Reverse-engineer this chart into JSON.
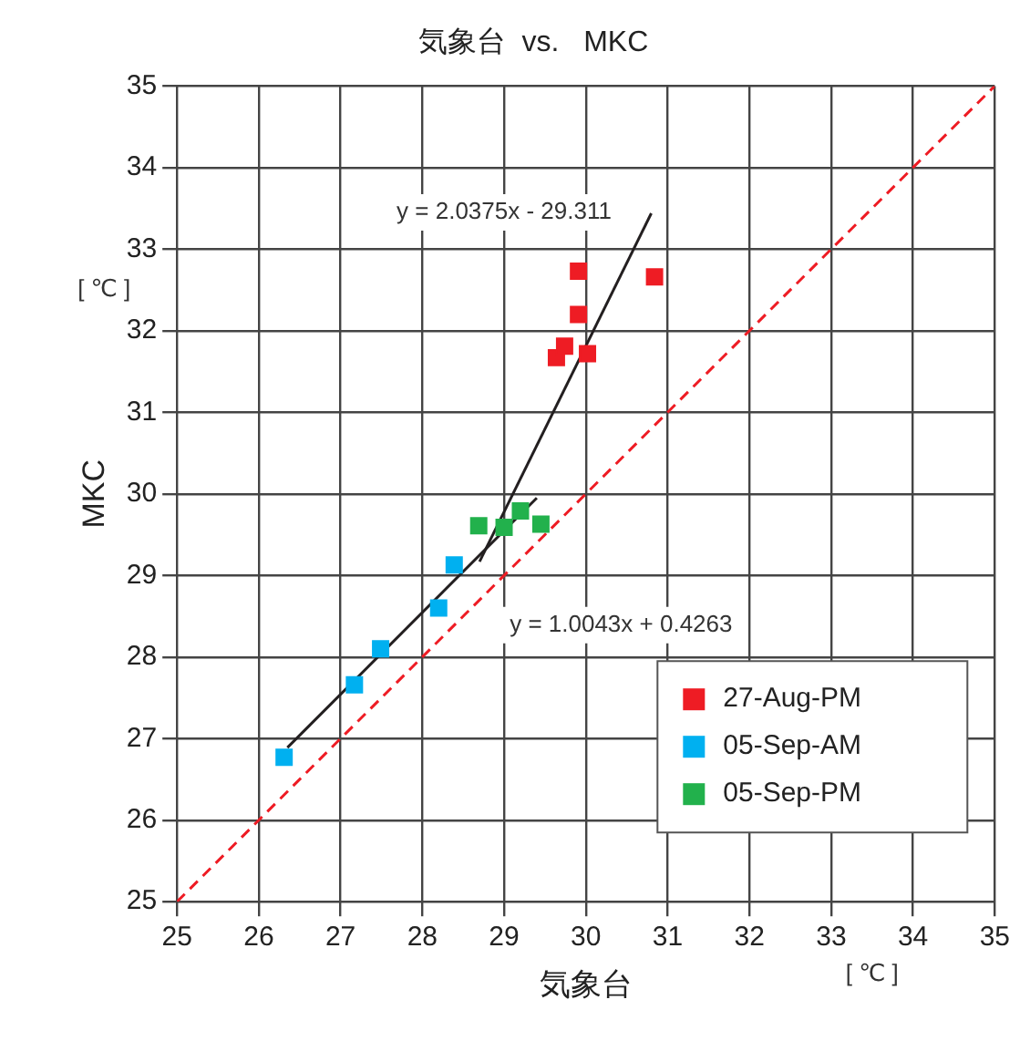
{
  "chart_data": {
    "type": "scatter",
    "title": "気象台  vs.   MKC",
    "xlabel": "気象台",
    "ylabel": "MKC",
    "xlim": [
      25,
      35
    ],
    "xticks": [
      25,
      26,
      27,
      28,
      29,
      30,
      31,
      32,
      33,
      34,
      35
    ],
    "ylim": [
      25,
      35
    ],
    "yticks": [
      25,
      26,
      27,
      28,
      29,
      30,
      31,
      32,
      33,
      34,
      35
    ],
    "grid": true,
    "legend": "bottom right",
    "series": [
      {
        "name": "27-Aug-PM",
        "color": "#ee1c24",
        "marker": "square",
        "x": [
          29.91,
          30.84,
          29.91,
          29.64,
          29.74,
          30.02
        ],
        "values": [
          32.73,
          32.66,
          32.2,
          31.67,
          31.81,
          31.72
        ]
      },
      {
        "name": "05-Sep-AM",
        "color": "#00b0f0",
        "marker": "square",
        "x": [
          26.31,
          27.17,
          27.49,
          28.2,
          28.39
        ],
        "values": [
          26.77,
          27.66,
          28.1,
          28.6,
          29.13
        ]
      },
      {
        "name": "05-Sep-PM",
        "color": "#22b14c",
        "marker": "square",
        "x": [
          28.69,
          29.0,
          29.2,
          29.36,
          29.45
        ],
        "values": [
          29.61,
          29.59,
          29.79,
          null,
          29.63
        ]
      },
      {
        "type": "line",
        "color": "#231f20",
        "marker": "none",
        "line_style": "solid",
        "x": [
          28.7,
          30.8
        ],
        "values": [
          29.17,
          33.44
        ]
      },
      {
        "type": "line",
        "color": "#231f20",
        "marker": "none",
        "line_style": "solid",
        "x": [
          26.35,
          29.4
        ],
        "values": [
          26.89,
          29.95
        ]
      },
      {
        "type": "line",
        "color": "#ee1c24",
        "marker": "none",
        "line_style": "dashed",
        "x": [
          25,
          35
        ],
        "values": [
          25,
          35
        ]
      }
    ],
    "annotations": [
      "y = 2.0375x - 29.311",
      "y = 1.0043x + 0.4263",
      "[ ℃ ]",
      "[ ℃ ]"
    ]
  }
}
